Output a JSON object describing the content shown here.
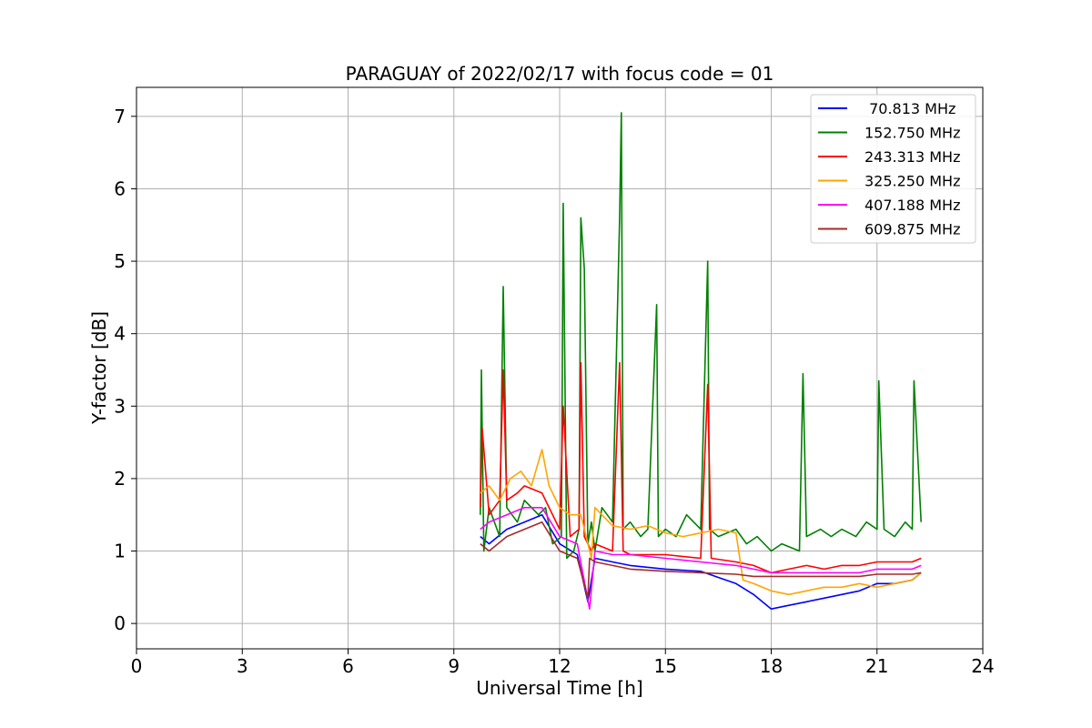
{
  "chart_data": {
    "type": "line",
    "title": "PARAGUAY of 2022/02/17 with focus code = 01",
    "xlabel": "Universal Time [h]",
    "ylabel": "Y-factor [dB]",
    "xlim": [
      0,
      24
    ],
    "ylim": [
      -0.35,
      7.4
    ],
    "xticks": [
      "0",
      "3",
      "6",
      "9",
      "12",
      "15",
      "18",
      "21",
      "24"
    ],
    "yticks": [
      "0",
      "1",
      "2",
      "3",
      "4",
      "5",
      "6",
      "7"
    ],
    "grid": true,
    "legend_position": "top-right",
    "series": [
      {
        "name": " 70.813 MHz",
        "color": "#0000ff",
        "x": [
          9.75,
          10.0,
          10.5,
          11.0,
          11.5,
          12.0,
          12.5,
          12.8,
          13.0,
          13.5,
          14.0,
          15.0,
          16.0,
          17.0,
          17.5,
          18.0,
          18.5,
          19.0,
          19.5,
          20.0,
          20.5,
          21.0,
          21.5,
          22.0,
          22.25
        ],
        "y": [
          1.2,
          1.1,
          1.3,
          1.4,
          1.5,
          1.1,
          0.95,
          0.3,
          0.9,
          0.85,
          0.8,
          0.75,
          0.72,
          0.55,
          0.4,
          0.2,
          0.25,
          0.3,
          0.35,
          0.4,
          0.45,
          0.55,
          0.55,
          0.6,
          0.7
        ]
      },
      {
        "name": "152.750 MHz",
        "color": "#008000",
        "x": [
          9.75,
          9.78,
          9.85,
          10.0,
          10.3,
          10.4,
          10.5,
          10.8,
          11.0,
          11.4,
          11.6,
          11.8,
          12.05,
          12.1,
          12.2,
          12.4,
          12.55,
          12.6,
          12.7,
          12.8,
          12.9,
          13.0,
          13.2,
          13.5,
          13.7,
          13.75,
          13.8,
          14.0,
          14.3,
          14.5,
          14.75,
          14.8,
          15.0,
          15.3,
          15.6,
          16.0,
          16.2,
          16.25,
          16.5,
          17.0,
          17.3,
          17.6,
          18.0,
          18.3,
          18.8,
          18.9,
          19.0,
          19.4,
          19.7,
          20.0,
          20.4,
          20.7,
          21.0,
          21.05,
          21.2,
          21.5,
          21.8,
          22.0,
          22.05,
          22.25
        ],
        "y": [
          1.5,
          3.5,
          1.0,
          1.6,
          1.2,
          4.65,
          1.6,
          1.4,
          1.7,
          1.5,
          1.6,
          1.1,
          1.2,
          5.8,
          0.9,
          1.0,
          1.3,
          5.6,
          4.9,
          1.1,
          1.4,
          1.0,
          1.6,
          1.4,
          5.6,
          7.05,
          1.3,
          1.4,
          1.2,
          1.3,
          4.4,
          1.2,
          1.3,
          1.2,
          1.5,
          1.3,
          5.0,
          1.3,
          1.2,
          1.3,
          1.1,
          1.2,
          1.0,
          1.1,
          1.0,
          3.45,
          1.2,
          1.3,
          1.2,
          1.3,
          1.2,
          1.4,
          1.3,
          3.35,
          1.3,
          1.2,
          1.4,
          1.3,
          3.35,
          1.4
        ]
      },
      {
        "name": "243.313 MHz",
        "color": "#ff0000",
        "x": [
          9.75,
          9.8,
          10.0,
          10.3,
          10.4,
          10.5,
          10.8,
          11.0,
          11.5,
          12.0,
          12.1,
          12.3,
          12.55,
          12.6,
          12.7,
          12.9,
          13.0,
          13.5,
          13.7,
          13.8,
          14.0,
          15.0,
          16.0,
          16.2,
          16.3,
          17.0,
          17.5,
          18.0,
          18.5,
          19.0,
          19.5,
          20.0,
          20.5,
          21.0,
          21.5,
          22.0,
          22.25
        ],
        "y": [
          1.6,
          2.7,
          1.5,
          1.7,
          3.5,
          1.7,
          1.8,
          1.9,
          1.8,
          1.3,
          3.0,
          1.2,
          1.3,
          3.6,
          1.2,
          1.0,
          1.1,
          1.0,
          3.6,
          1.0,
          0.95,
          0.95,
          0.9,
          3.3,
          0.9,
          0.85,
          0.8,
          0.7,
          0.75,
          0.8,
          0.75,
          0.8,
          0.8,
          0.85,
          0.85,
          0.85,
          0.9
        ]
      },
      {
        "name": "325.250 MHz",
        "color": "#ffa500",
        "x": [
          9.75,
          10.0,
          10.3,
          10.6,
          10.9,
          11.2,
          11.5,
          11.7,
          12.0,
          12.3,
          12.6,
          12.9,
          13.0,
          13.5,
          14.0,
          14.5,
          15.0,
          15.5,
          16.0,
          16.5,
          17.0,
          17.2,
          17.5,
          18.0,
          18.5,
          19.0,
          19.5,
          20.0,
          20.5,
          21.0,
          21.5,
          22.0,
          22.25
        ],
        "y": [
          1.8,
          1.9,
          1.7,
          2.0,
          2.1,
          1.9,
          2.4,
          1.9,
          1.6,
          1.5,
          1.5,
          0.9,
          1.6,
          1.35,
          1.3,
          1.35,
          1.25,
          1.2,
          1.25,
          1.3,
          1.25,
          0.6,
          0.55,
          0.45,
          0.4,
          0.45,
          0.5,
          0.5,
          0.55,
          0.5,
          0.55,
          0.6,
          0.7
        ]
      },
      {
        "name": "407.188 MHz",
        "color": "#ff00ff",
        "x": [
          9.75,
          10.0,
          10.5,
          11.0,
          11.5,
          12.0,
          12.5,
          12.85,
          13.0,
          13.5,
          14.0,
          15.0,
          16.0,
          17.0,
          17.5,
          18.0,
          18.5,
          19.0,
          19.5,
          20.0,
          20.5,
          21.0,
          21.5,
          22.0,
          22.25
        ],
        "y": [
          1.3,
          1.4,
          1.5,
          1.6,
          1.6,
          1.2,
          1.1,
          0.2,
          1.0,
          0.95,
          0.95,
          0.9,
          0.85,
          0.8,
          0.75,
          0.7,
          0.7,
          0.7,
          0.7,
          0.7,
          0.7,
          0.75,
          0.75,
          0.75,
          0.8
        ]
      },
      {
        "name": "609.875 MHz",
        "color": "#a52a2a",
        "x": [
          9.75,
          10.0,
          10.5,
          11.0,
          11.5,
          12.0,
          12.5,
          12.8,
          12.85,
          13.0,
          13.5,
          14.0,
          15.0,
          16.0,
          17.0,
          17.5,
          18.0,
          18.5,
          19.0,
          19.5,
          20.0,
          20.5,
          21.0,
          21.5,
          22.0,
          22.25
        ],
        "y": [
          1.1,
          1.0,
          1.2,
          1.3,
          1.4,
          1.0,
          0.9,
          0.35,
          0.9,
          0.85,
          0.8,
          0.75,
          0.72,
          0.7,
          0.68,
          0.65,
          0.65,
          0.65,
          0.65,
          0.65,
          0.65,
          0.65,
          0.68,
          0.68,
          0.68,
          0.7
        ]
      }
    ]
  }
}
